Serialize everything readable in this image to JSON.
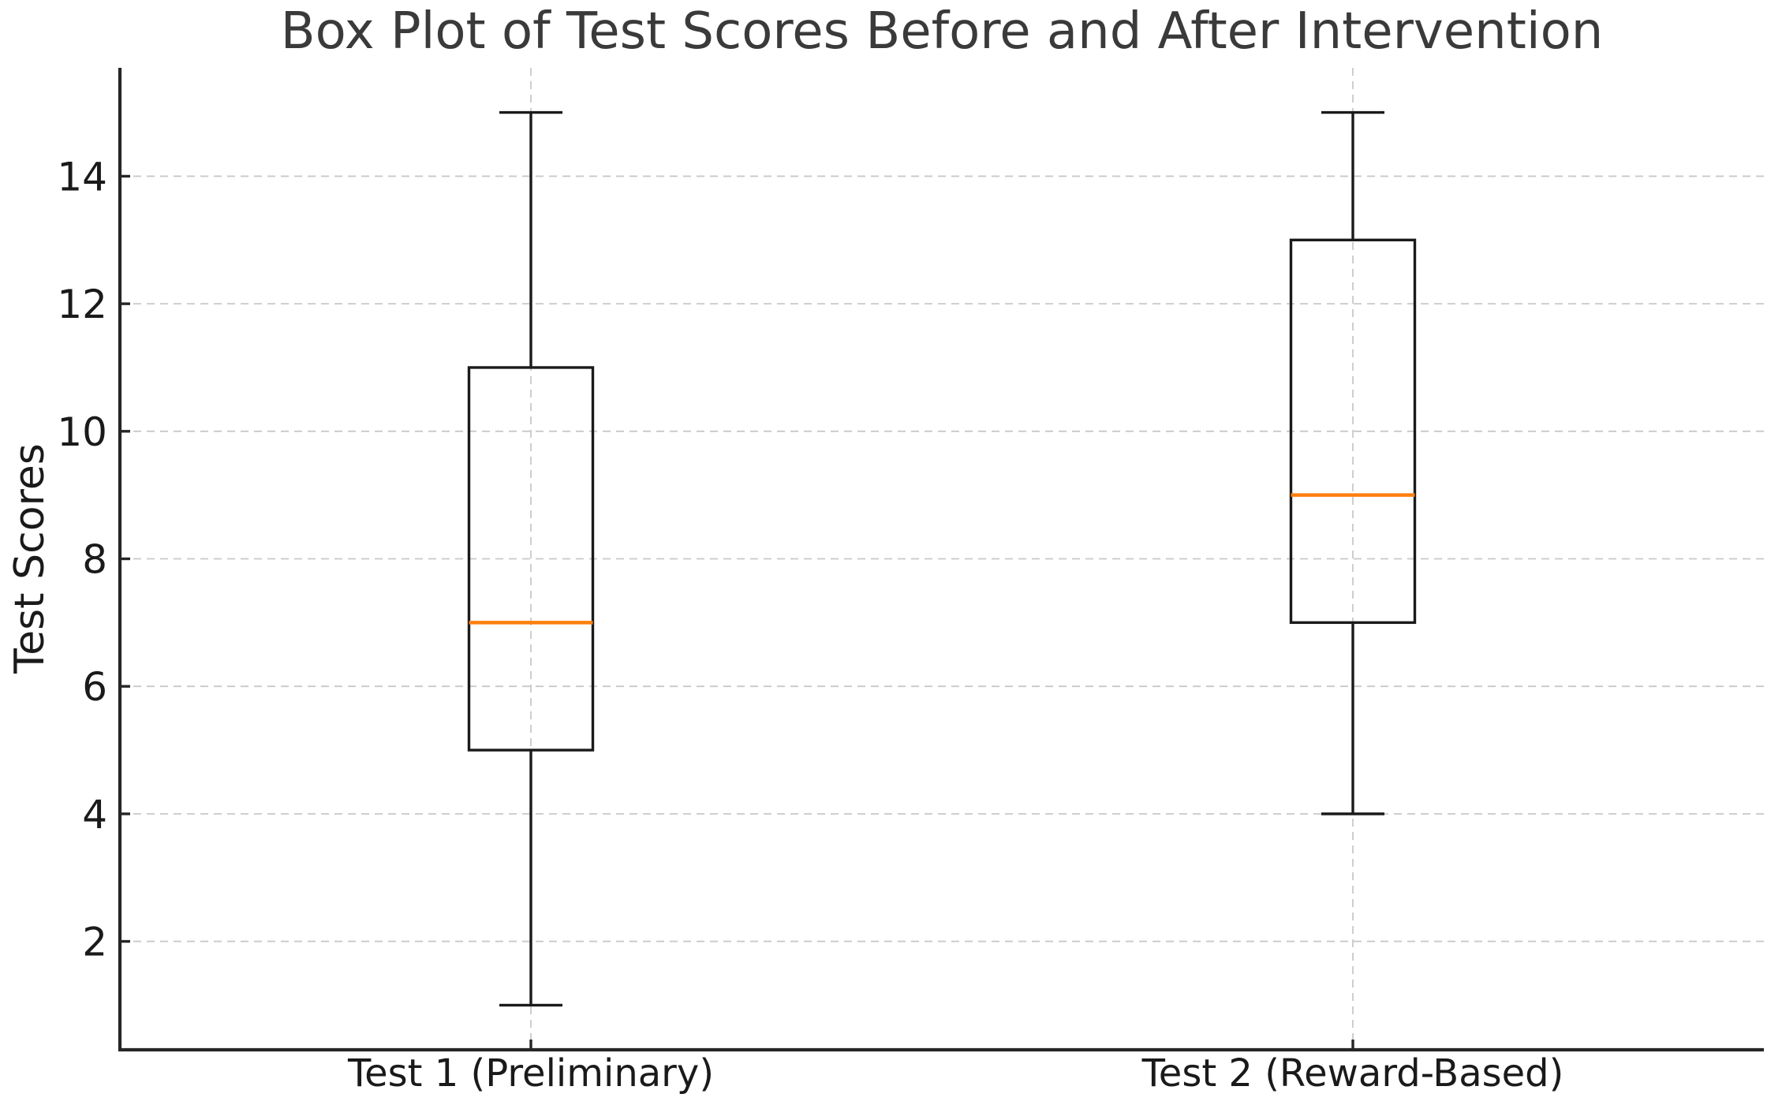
{
  "chart_data": {
    "type": "box",
    "title": "Box Plot of Test Scores Before and After Intervention",
    "ylabel": "Test Scores",
    "xlabel": "",
    "categories": [
      "Test 1 (Preliminary)",
      "Test 2 (Reward-Based)"
    ],
    "series": [
      {
        "name": "Test 1 (Preliminary)",
        "whisker_low": 1,
        "q1": 5,
        "median": 7,
        "q3": 11,
        "whisker_high": 15
      },
      {
        "name": "Test 2 (Reward-Based)",
        "whisker_low": 4,
        "q1": 7,
        "median": 9,
        "q3": 13,
        "whisker_high": 15
      }
    ],
    "yticks": [
      2,
      4,
      6,
      8,
      10,
      12,
      14
    ],
    "ylim": [
      0.3,
      15.7
    ],
    "xlim": [
      0.5,
      2.5
    ],
    "grid": "dashed horizontal and vertical gridlines",
    "legend_position": "none",
    "colors": {
      "background": "#ffffff",
      "box_line": "#1a1a1a",
      "median_line": "#ff7f0e",
      "grid_line": "#c9c9c9",
      "spine": "#262626",
      "title_text": "#3a3a3a",
      "tick_text": "#1a1a1a"
    }
  }
}
